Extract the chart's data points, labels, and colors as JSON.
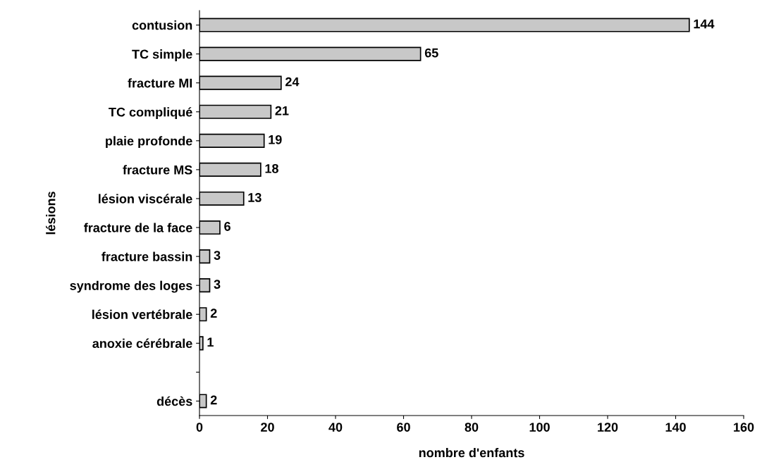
{
  "chart_data": {
    "type": "bar",
    "orientation": "horizontal",
    "xlabel": "nombre d'enfants",
    "ylabel": "lésions",
    "categories": [
      "contusion",
      "TC simple",
      "fracture MI",
      "TC compliqué",
      "plaie profonde",
      "fracture MS",
      "lésion viscérale",
      "fracture de la face",
      "fracture bassin",
      "syndrome des loges",
      "lésion vertébrale",
      "anoxie cérébrale",
      null,
      "décès"
    ],
    "values": [
      144,
      65,
      24,
      21,
      19,
      18,
      13,
      6,
      3,
      3,
      2,
      1,
      null,
      2
    ],
    "color": "#c8c8c8",
    "xlim": [
      0,
      160
    ],
    "xticks": [
      0,
      20,
      40,
      60,
      80,
      100,
      120,
      140,
      160
    ],
    "grid": false,
    "legend": false,
    "data_labels": true
  }
}
